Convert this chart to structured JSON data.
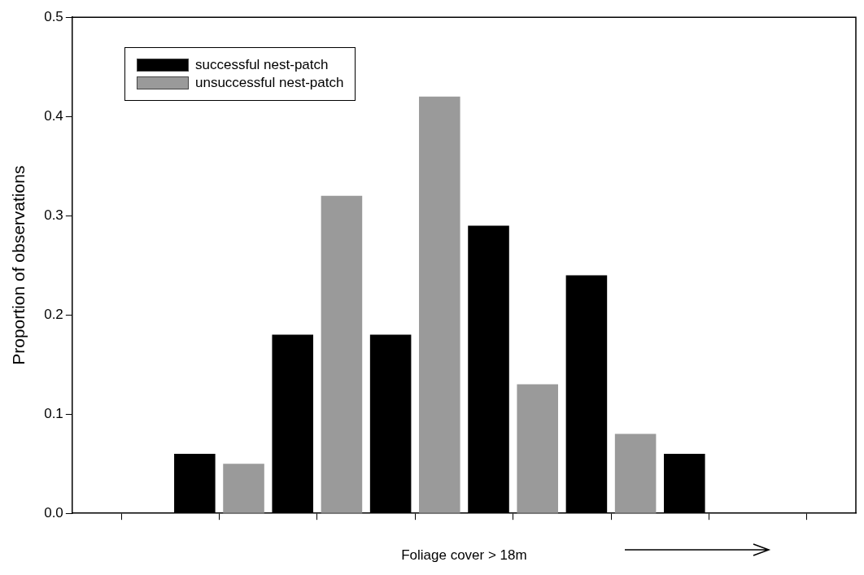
{
  "chart_data": {
    "type": "bar",
    "xlabel": "Foliage cover > 18m",
    "ylabel": "Proportion of observations",
    "categories": [
      null,
      null,
      null,
      null,
      null,
      null,
      null,
      null
    ],
    "series": [
      {
        "name": "successful nest-patch",
        "color": "#000000",
        "values": [
          null,
          0.06,
          0.18,
          0.18,
          0.29,
          0.24,
          0.06,
          null
        ]
      },
      {
        "name": "unsuccessful nest-patch",
        "color": "#9a9a9a",
        "values": [
          null,
          0.05,
          0.32,
          0.42,
          0.13,
          0.08,
          null,
          null
        ]
      }
    ],
    "ylim": [
      0,
      0.5
    ],
    "yticks": [
      {
        "value": 0,
        "label": "0.0"
      },
      {
        "value": 0.1,
        "label": "0.1"
      },
      {
        "value": 0.2,
        "label": "0.2"
      },
      {
        "value": 0.3,
        "label": "0.3"
      },
      {
        "value": 0.4,
        "label": "0.4"
      },
      {
        "value": 0.5,
        "label": "0.5"
      }
    ],
    "grid": false,
    "legend": "top left"
  }
}
